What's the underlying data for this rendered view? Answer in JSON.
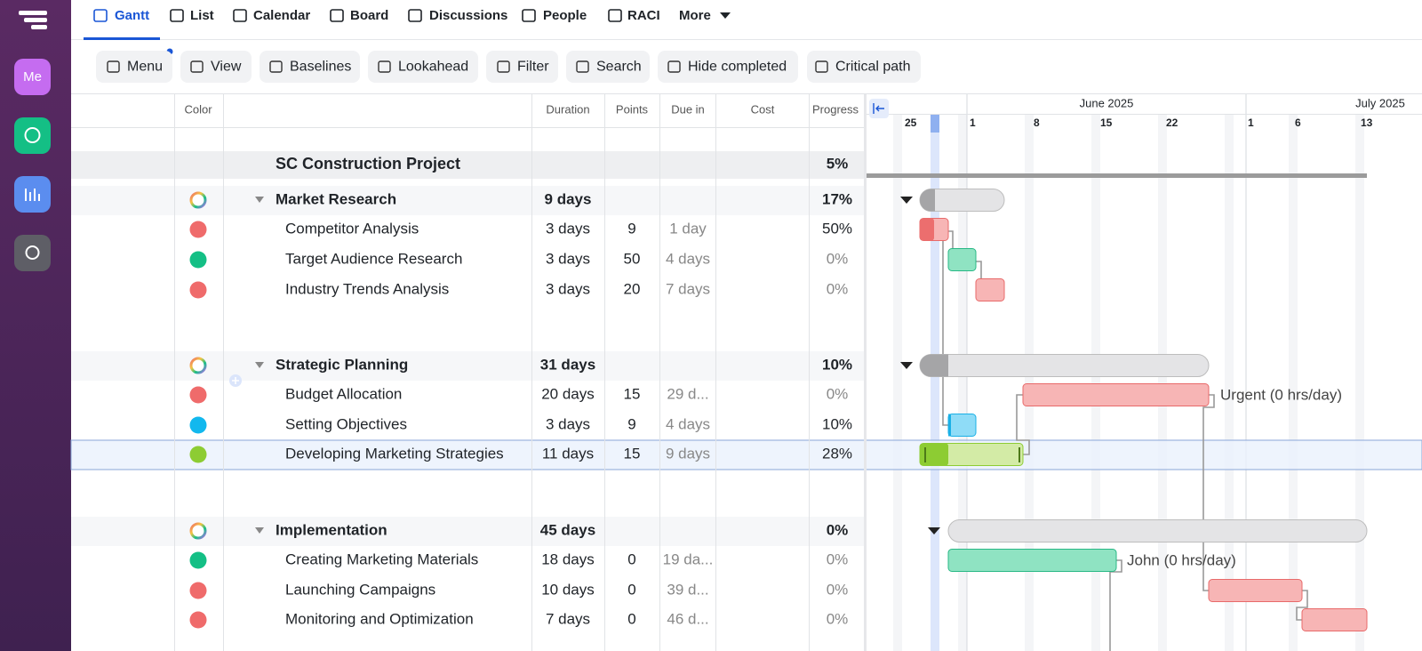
{
  "sidebar": {
    "avatar": "Me"
  },
  "tabs": [
    "Gantt",
    "List",
    "Calendar",
    "Board",
    "Discussions",
    "People",
    "RACI",
    "More"
  ],
  "toolbar": [
    "Menu",
    "View",
    "Baselines",
    "Lookahead",
    "Filter",
    "Search",
    "Hide completed",
    "Critical path"
  ],
  "table": {
    "columns": [
      "Color",
      "Duration",
      "Points",
      "Due in",
      "Cost",
      "Progress"
    ],
    "rows": [
      {
        "level": 0,
        "name": "SC Construction Project",
        "progress": "5%"
      },
      {
        "level": 1,
        "name": "Market Research",
        "duration": "9 days",
        "progress": "17%",
        "color": "multi"
      },
      {
        "level": 2,
        "name": "Competitor Analysis",
        "duration": "3 days",
        "points": "9",
        "due_in": "1 day",
        "progress": "50%",
        "color": "#ef6b6b"
      },
      {
        "level": 2,
        "name": "Target Audience Research",
        "duration": "3 days",
        "points": "50",
        "due_in": "4 days",
        "progress": "0%",
        "color": "#14bf85"
      },
      {
        "level": 2,
        "name": "Industry Trends Analysis",
        "duration": "3 days",
        "points": "20",
        "due_in": "7 days",
        "progress": "0%",
        "color": "#ef6b6b"
      },
      {
        "level": 1,
        "name": "Strategic Planning",
        "duration": "31 days",
        "progress": "10%",
        "color": "multi"
      },
      {
        "level": 2,
        "name": "Budget Allocation",
        "duration": "20 days",
        "points": "15",
        "due_in": "29 d...",
        "progress": "0%",
        "color": "#ef6b6b"
      },
      {
        "level": 2,
        "name": "Setting Objectives",
        "duration": "3 days",
        "points": "9",
        "due_in": "4 days",
        "progress": "10%",
        "color": "#12b8ee"
      },
      {
        "level": 2,
        "name": "Developing Marketing Strategies",
        "duration": "11 days",
        "points": "15",
        "due_in": "9 days",
        "progress": "28%",
        "color": "#8dcc33"
      },
      {
        "level": 1,
        "name": "Implementation",
        "duration": "45 days",
        "progress": "0%",
        "color": "multi"
      },
      {
        "level": 2,
        "name": "Creating Marketing Materials",
        "duration": "18 days",
        "points": "0",
        "due_in": "19 da...",
        "progress": "0%",
        "color": "#14bf85"
      },
      {
        "level": 2,
        "name": "Launching Campaigns",
        "duration": "10 days",
        "points": "0",
        "due_in": "39 d...",
        "progress": "0%",
        "color": "#ef6b6b"
      },
      {
        "level": 2,
        "name": "Monitoring and Optimization",
        "duration": "7 days",
        "points": "0",
        "due_in": "46 d...",
        "progress": "0%",
        "color": "#ef6b6b"
      }
    ]
  },
  "timeline": {
    "months": [
      "June 2025",
      "July 2025"
    ],
    "days": [
      "25",
      "1",
      "8",
      "15",
      "22",
      "1",
      "6",
      "13"
    ],
    "resource_labels": [
      "Urgent (0 hrs/day)",
      "John (0 hrs/day)"
    ]
  }
}
